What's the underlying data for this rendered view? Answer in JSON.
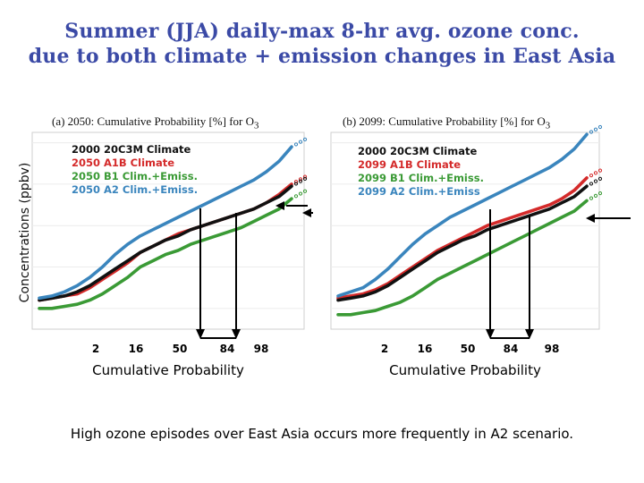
{
  "title_line1": "Summer (JJA) daily-max 8-hr avg. ozone conc.",
  "title_line2": "due to both climate +  emission changes in East Asia",
  "ylabel": "Concentrations (ppbv)",
  "footer": "High ozone episodes over East Asia occurs more frequently in A2 scenario.",
  "colors": {
    "black": "#111111",
    "red": "#d42a2a",
    "green": "#3a9a35",
    "blue": "#3a85bd"
  },
  "chart_data": [
    {
      "type": "line",
      "panel_label": "(a) 2050: Cumulative Probability [%] for O",
      "panel_sub": "3",
      "xlabel": "Cumulative Probability",
      "ylabel": "Concentrations (ppbv)",
      "x_ticks": [
        "2",
        "16",
        "50",
        "84",
        "98"
      ],
      "x": [
        0,
        5,
        10,
        15,
        20,
        25,
        30,
        35,
        40,
        45,
        50,
        55,
        60,
        65,
        70,
        75,
        80,
        85,
        90,
        95,
        100
      ],
      "series": [
        {
          "name": "2000 20C3M Climate",
          "color": "black",
          "values": [
            44,
            45,
            46,
            48,
            51,
            55,
            59,
            63,
            67,
            70,
            73,
            75,
            78,
            80,
            82,
            84,
            86,
            88,
            91,
            94,
            99
          ]
        },
        {
          "name": "2050 A1B Climate",
          "color": "red",
          "values": [
            44,
            45,
            46,
            47,
            50,
            54,
            58,
            62,
            67,
            70,
            73,
            76,
            78,
            80,
            82,
            84,
            86,
            88,
            91,
            95,
            100
          ]
        },
        {
          "name": "2050 B1 Clim.+Emiss.",
          "color": "green",
          "values": [
            40,
            40,
            41,
            42,
            44,
            47,
            51,
            55,
            60,
            63,
            66,
            68,
            71,
            73,
            75,
            77,
            79,
            82,
            85,
            88,
            93
          ]
        },
        {
          "name": "2050 A2 Clim.+Emiss.",
          "color": "blue",
          "values": [
            45,
            46,
            48,
            51,
            55,
            60,
            66,
            71,
            75,
            78,
            81,
            84,
            87,
            90,
            93,
            96,
            99,
            102,
            106,
            111,
            118
          ]
        }
      ]
    },
    {
      "type": "line",
      "panel_label": "(b) 2099: Cumulative Probability [%] for O",
      "panel_sub": "3",
      "xlabel": "Cumulative Probability",
      "ylabel": "",
      "x_ticks": [
        "2",
        "16",
        "50",
        "84",
        "98"
      ],
      "x": [
        0,
        5,
        10,
        15,
        20,
        25,
        30,
        35,
        40,
        45,
        50,
        55,
        60,
        65,
        70,
        75,
        80,
        85,
        90,
        95,
        100
      ],
      "series": [
        {
          "name": "2000 20C3M Climate",
          "color": "black",
          "values": [
            44,
            45,
            46,
            48,
            51,
            55,
            59,
            63,
            67,
            70,
            73,
            75,
            78,
            80,
            82,
            84,
            86,
            88,
            91,
            94,
            99
          ]
        },
        {
          "name": "2099 A1B Climate",
          "color": "red",
          "values": [
            45,
            46,
            47,
            49,
            52,
            56,
            60,
            64,
            68,
            71,
            74,
            77,
            80,
            82,
            84,
            86,
            88,
            90,
            93,
            97,
            103
          ]
        },
        {
          "name": "2099 B1 Clim.+Emiss.",
          "color": "green",
          "values": [
            37,
            37,
            38,
            39,
            41,
            43,
            46,
            50,
            54,
            57,
            60,
            63,
            66,
            69,
            72,
            75,
            78,
            81,
            84,
            87,
            92
          ]
        },
        {
          "name": "2099 A2 Clim.+Emiss",
          "color": "blue",
          "values": [
            46,
            48,
            50,
            54,
            59,
            65,
            71,
            76,
            80,
            84,
            87,
            90,
            93,
            96,
            99,
            102,
            105,
            108,
            112,
            117,
            124
          ]
        }
      ]
    }
  ]
}
